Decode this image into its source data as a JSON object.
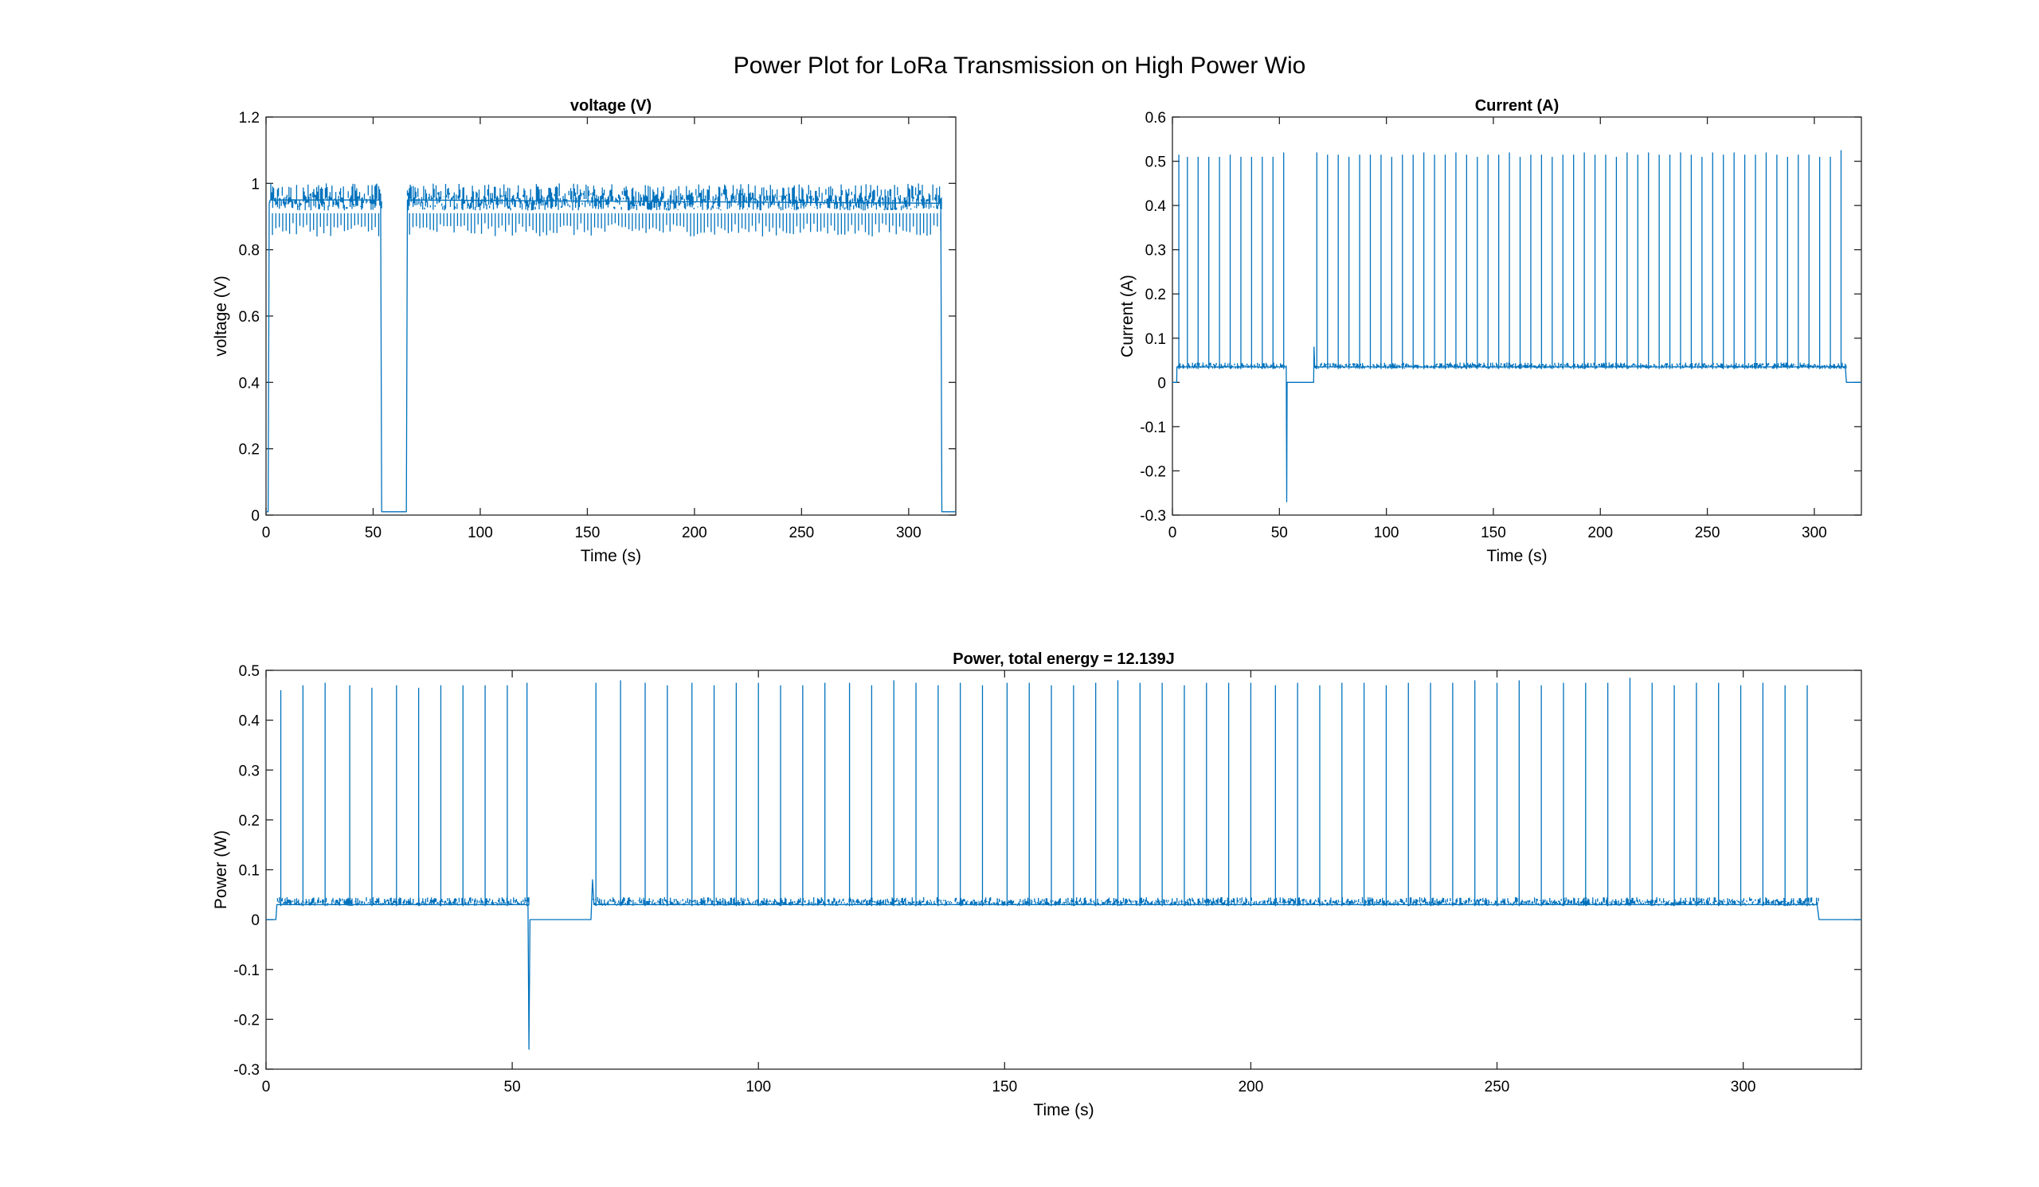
{
  "figure": {
    "title": "Power Plot for LoRa Transmission on High Power Wio"
  },
  "colors": {
    "trace": "#0072BD",
    "axes": "#262626"
  },
  "chart_data": [
    {
      "id": "voltage",
      "type": "line",
      "title": "voltage (V)",
      "xlabel": "Time (s)",
      "ylabel": "voltage (V)",
      "xlim": [
        0,
        322
      ],
      "ylim": [
        0,
        1.2
      ],
      "xticks": [
        0,
        50,
        100,
        150,
        200,
        250,
        300
      ],
      "yticks": [
        0,
        0.2,
        0.4,
        0.6,
        0.8,
        1,
        1.2
      ],
      "ytick_labels": [
        "0",
        "0.2",
        "0.4",
        "0.6",
        "0.8",
        "1",
        "1.2"
      ],
      "series": [
        {
          "x": [
            0,
            1,
            1.5,
            2,
            53,
            53.5,
            54,
            65.5,
            66,
            315,
            315.5,
            316,
            322
          ],
          "y": [
            0.01,
            0.01,
            0.94,
            0.95,
            0.95,
            0.95,
            0.01,
            0.01,
            0.95,
            0.94,
            0.01,
            0.01,
            0.01
          ],
          "band": {
            "low": 0.91,
            "high": 1.0
          },
          "dips": [
            {
              "every": 1.6,
              "to": 0.86
            }
          ]
        }
      ]
    },
    {
      "id": "current",
      "type": "line",
      "title": "Current (A)",
      "xlabel": "Time (s)",
      "ylabel": "Current (A)",
      "xlim": [
        0,
        322
      ],
      "ylim": [
        -0.3,
        0.6
      ],
      "xticks": [
        0,
        50,
        100,
        150,
        200,
        250,
        300
      ],
      "yticks": [
        -0.3,
        -0.2,
        -0.1,
        0,
        0.1,
        0.2,
        0.3,
        0.4,
        0.5,
        0.6
      ],
      "ytick_labels": [
        "-0.3",
        "-0.2",
        "-0.1",
        "0",
        "0.1",
        "0.2",
        "0.3",
        "0.4",
        "0.5",
        "0.6"
      ],
      "series": [
        {
          "x": [
            0,
            2,
            2.1,
            53.2,
            53.4,
            53.6,
            54,
            66,
            66.2,
            66.5,
            314.5,
            315,
            322
          ],
          "y": [
            0,
            0,
            0.035,
            0.035,
            -0.27,
            0.0,
            0.0,
            0.0,
            0.08,
            0.035,
            0.035,
            0.0,
            0.0
          ],
          "band": {
            "low": 0.03,
            "high": 0.045
          },
          "spikes_x": [
            3,
            7,
            12,
            17,
            22,
            27,
            32,
            37,
            42,
            47,
            52,
            67.5,
            72.5,
            77.5,
            82.5,
            87.5,
            92.5,
            97.5,
            102.5,
            107.5,
            112.5,
            117.5,
            122.5,
            127.5,
            132.5,
            137.5,
            142.5,
            147.5,
            152.5,
            157.5,
            162.5,
            167.5,
            172.5,
            177.5,
            182.5,
            187.5,
            192.5,
            197.5,
            202.5,
            207.5,
            212.5,
            217.5,
            222.5,
            227.5,
            232.5,
            237.5,
            242.5,
            247.5,
            252.5,
            257.5,
            262.5,
            267.5,
            272.5,
            277.5,
            282.5,
            287.5,
            292.5,
            297.5,
            302.5,
            307.5,
            312.5
          ],
          "spikes_y": [
            0.515,
            0.51,
            0.51,
            0.51,
            0.51,
            0.515,
            0.51,
            0.51,
            0.51,
            0.51,
            0.52,
            0.52,
            0.515,
            0.515,
            0.51,
            0.515,
            0.515,
            0.515,
            0.51,
            0.515,
            0.515,
            0.52,
            0.515,
            0.515,
            0.52,
            0.515,
            0.51,
            0.515,
            0.515,
            0.52,
            0.51,
            0.515,
            0.515,
            0.51,
            0.515,
            0.515,
            0.52,
            0.515,
            0.515,
            0.51,
            0.52,
            0.515,
            0.52,
            0.515,
            0.515,
            0.52,
            0.515,
            0.51,
            0.52,
            0.515,
            0.52,
            0.515,
            0.515,
            0.52,
            0.515,
            0.51,
            0.515,
            0.515,
            0.51,
            0.51,
            0.525
          ]
        }
      ]
    },
    {
      "id": "power",
      "type": "line",
      "title": "Power, total energy = 12.139J",
      "xlabel": "Time (s)",
      "ylabel": "Power (W)",
      "xlim": [
        0,
        324
      ],
      "ylim": [
        -0.3,
        0.5
      ],
      "xticks": [
        0,
        50,
        100,
        150,
        200,
        250,
        300
      ],
      "yticks": [
        -0.3,
        -0.2,
        -0.1,
        0,
        0.1,
        0.2,
        0.3,
        0.4,
        0.5
      ],
      "ytick_labels": [
        "-0.3",
        "-0.2",
        "-0.1",
        "0",
        "0.1",
        "0.2",
        "0.3",
        "0.4",
        "0.5"
      ],
      "series": [
        {
          "x": [
            0,
            2,
            2.2,
            53.2,
            53.4,
            53.6,
            54,
            66,
            66.3,
            66.6,
            315,
            315.4,
            324
          ],
          "y": [
            0,
            0,
            0.03,
            0.03,
            -0.26,
            0.0,
            0.0,
            0.0,
            0.08,
            0.03,
            0.03,
            0.0,
            0.0
          ],
          "band": {
            "low": 0.027,
            "high": 0.045
          },
          "spikes_x": [
            3,
            7.5,
            12,
            17,
            21.5,
            26.5,
            31,
            35.5,
            40,
            44.5,
            49,
            53,
            67,
            72,
            77,
            81.5,
            86.5,
            91,
            95.5,
            100,
            104.5,
            109,
            113.5,
            118.5,
            123,
            127.5,
            132,
            136.5,
            141,
            145.5,
            150.5,
            155,
            159.5,
            164,
            168.5,
            173,
            177.5,
            182,
            186.5,
            191,
            195.5,
            200,
            205,
            209.5,
            214,
            218.5,
            223,
            227.5,
            232,
            236.5,
            241,
            245.5,
            250,
            254.5,
            259,
            263.5,
            268,
            272.5,
            277,
            281.5,
            286,
            290.5,
            295,
            299.5,
            304,
            308.5,
            313
          ],
          "spikes_y": [
            0.46,
            0.47,
            0.475,
            0.47,
            0.465,
            0.47,
            0.465,
            0.47,
            0.47,
            0.47,
            0.47,
            0.475,
            0.475,
            0.48,
            0.475,
            0.47,
            0.475,
            0.47,
            0.475,
            0.475,
            0.47,
            0.47,
            0.475,
            0.475,
            0.47,
            0.48,
            0.475,
            0.47,
            0.475,
            0.47,
            0.475,
            0.475,
            0.47,
            0.47,
            0.475,
            0.48,
            0.475,
            0.475,
            0.47,
            0.475,
            0.475,
            0.475,
            0.47,
            0.475,
            0.47,
            0.475,
            0.475,
            0.47,
            0.475,
            0.475,
            0.475,
            0.48,
            0.475,
            0.48,
            0.47,
            0.475,
            0.475,
            0.475,
            0.485,
            0.475,
            0.47,
            0.475,
            0.475,
            0.47,
            0.475,
            0.47,
            0.47
          ]
        }
      ]
    }
  ]
}
